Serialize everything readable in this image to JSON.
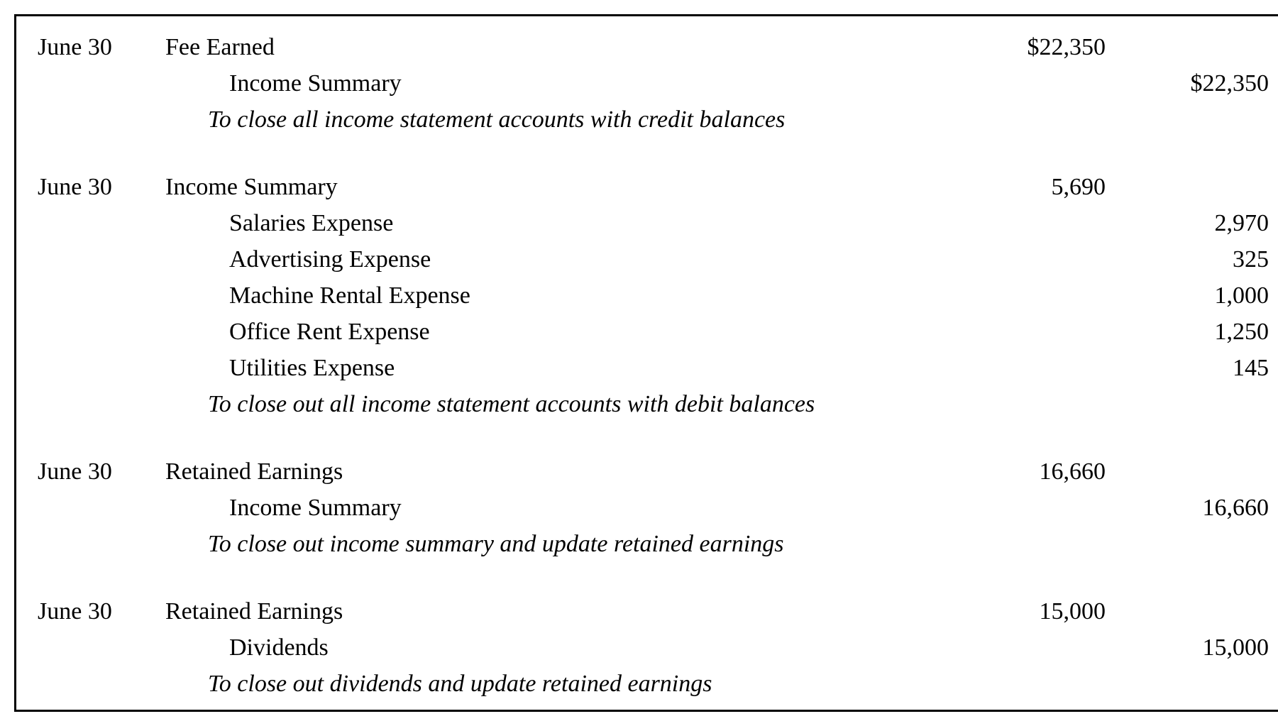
{
  "border_color": "#000000",
  "text_color": "#000000",
  "background_color": "#ffffff",
  "font_family": "Georgia, 'Times New Roman', serif",
  "font_size_pt": 26,
  "entries": [
    {
      "date": "June 30",
      "lines": [
        {
          "account": "Fee Earned",
          "debit": "$22,350",
          "credit": "",
          "indented": false
        },
        {
          "account": "Income Summary",
          "debit": "",
          "credit": "$22,350",
          "indented": true
        }
      ],
      "explanation": "To close all income statement accounts with credit balances"
    },
    {
      "date": "June 30",
      "lines": [
        {
          "account": "Income Summary",
          "debit": "5,690",
          "credit": "",
          "indented": false
        },
        {
          "account": "Salaries Expense",
          "debit": "",
          "credit": "2,970",
          "indented": true
        },
        {
          "account": "Advertising Expense",
          "debit": "",
          "credit": "325",
          "indented": true
        },
        {
          "account": "Machine Rental Expense",
          "debit": "",
          "credit": "1,000",
          "indented": true
        },
        {
          "account": "Office Rent Expense",
          "debit": "",
          "credit": "1,250",
          "indented": true
        },
        {
          "account": "Utilities Expense",
          "debit": "",
          "credit": "145",
          "indented": true
        }
      ],
      "explanation": "To close out all income statement accounts with debit balances"
    },
    {
      "date": "June 30",
      "lines": [
        {
          "account": "Retained Earnings",
          "debit": "16,660",
          "credit": "",
          "indented": false
        },
        {
          "account": "Income Summary",
          "debit": "",
          "credit": "16,660",
          "indented": true
        }
      ],
      "explanation": "To close out income summary and update retained earnings"
    },
    {
      "date": "June 30",
      "lines": [
        {
          "account": "Retained Earnings",
          "debit": "15,000",
          "credit": "",
          "indented": false
        },
        {
          "account": "Dividends",
          "debit": "",
          "credit": "15,000",
          "indented": true
        }
      ],
      "explanation": "To close out dividends and update retained earnings"
    }
  ]
}
